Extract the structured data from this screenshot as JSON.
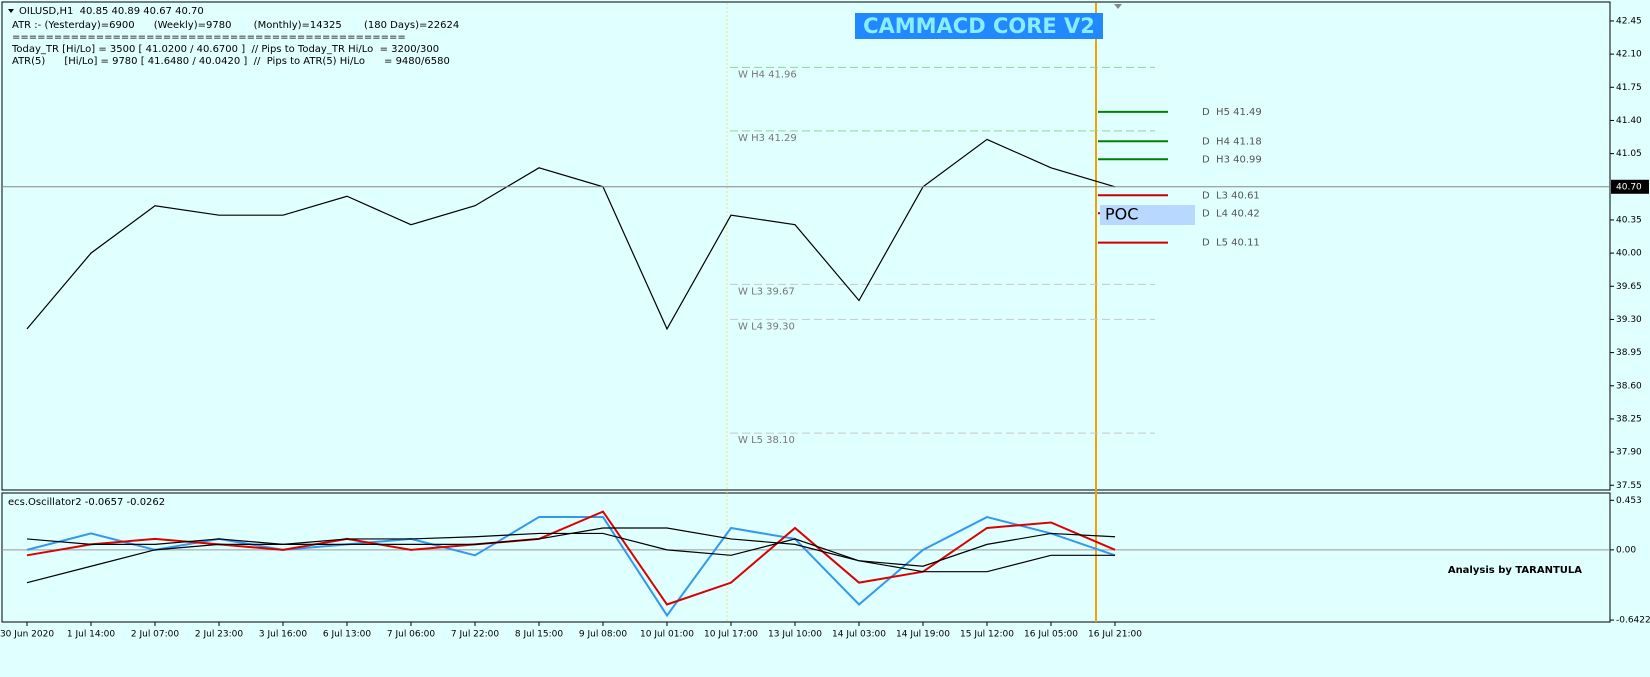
{
  "header": {
    "symbol_line": "OILUSD,H1  40.85 40.89 40.67 40.70",
    "atr_line": "ATR :- (Yesterday)=6900      (Weekly)=9780       (Monthly)=14325       (180 Days)=22624",
    "separator": "===============================================",
    "today_tr": "Today_TR [Hi/Lo] = 3500 [ 41.0200 / 40.6700 ]  // Pips to Today_TR Hi/Lo  = 3200/300",
    "atr5": "ATR(5)      [Hi/Lo] = 9780 [ 41.6480 / 40.0420 ]  //  Pips to ATR(5) Hi/Lo      = 9480/6580",
    "indicator_title": "CAMMACD CORE V2"
  },
  "chart_data": [
    {
      "type": "line",
      "categories": [
        "30 Jun 2020",
        "1 Jul 14:00",
        "2 Jul 07:00",
        "2 Jul 23:00",
        "3 Jul 16:00",
        "6 Jul 13:00",
        "7 Jul 06:00",
        "7 Jul 22:00",
        "8 Jul 15:00",
        "9 Jul 08:00",
        "10 Jul 01:00",
        "10 Jul 17:00",
        "13 Jul 10:00",
        "14 Jul 03:00",
        "14 Jul 19:00",
        "15 Jul 12:00",
        "16 Jul 05:00",
        "16 Jul 21:00"
      ],
      "series": [
        {
          "color": "#000000",
          "values": [
            39.2,
            40.0,
            40.5,
            40.4,
            40.4,
            40.6,
            40.3,
            40.5,
            40.9,
            40.7,
            39.2,
            40.4,
            40.3,
            39.5,
            40.7,
            41.2,
            40.9,
            40.7
          ]
        }
      ],
      "ylim": [
        37.5,
        42.65
      ],
      "yticks": [
        42.45,
        {
          "value": 42.1,
          "label": "42.10"
        },
        41.75,
        {
          "value": 41.4,
          "label": "41.40"
        },
        41.05,
        40.35,
        {
          "value": 40.0,
          "label": "40.00"
        },
        39.65,
        {
          "value": 39.3,
          "label": "39.30"
        },
        38.95,
        {
          "value": 38.6,
          "label": "38.60"
        },
        38.25,
        {
          "value": 37.9,
          "label": "37.90"
        },
        37.55
      ],
      "weekly_levels": [
        {
          "value": 41.96,
          "label": "W H4 41.96",
          "color": "#90d890"
        },
        {
          "value": 41.29,
          "label": "W H3 41.29",
          "color": "#90d890"
        },
        {
          "value": 39.67,
          "label": "W L3 39.67",
          "color": "#c8c8c8"
        },
        {
          "value": 39.3,
          "label": "W L4 39.30",
          "color": "#c8c8c8"
        },
        {
          "value": 38.1,
          "label": "W L5 38.10",
          "color": "#c8c8c8"
        }
      ],
      "daily_levels": [
        {
          "value": 41.49,
          "label": "D  H5 41.49",
          "color": "#008000"
        },
        {
          "value": 41.18,
          "label": "D  H4 41.18",
          "color": "#008000"
        },
        {
          "value": 40.99,
          "label": "D  H3 40.99",
          "color": "#008000"
        },
        {
          "value": 40.61,
          "label": "D  L3 40.61",
          "color": "#cc0000"
        },
        {
          "value": 40.42,
          "label": "D  L4 40.42",
          "color": "#cc0000"
        },
        {
          "value": 40.11,
          "label": "D  L5 40.11",
          "color": "#cc0000"
        }
      ],
      "current_price": {
        "value": 40.7,
        "label": "40.70"
      },
      "poc": "POC"
    },
    {
      "type": "line",
      "title": "ecs.Oscillator2 -0.0657 -0.0262",
      "annotation": "Analysis by TARANTULA",
      "series": [
        {
          "color": "#3399ee",
          "values": [
            0.0,
            0.15,
            0.0,
            0.1,
            0.0,
            0.05,
            0.1,
            -0.05,
            0.3,
            0.3,
            -0.6,
            0.2,
            0.1,
            -0.5,
            0.0,
            0.3,
            0.15,
            -0.05
          ]
        },
        {
          "color": "#dd0000",
          "values": [
            -0.05,
            0.05,
            0.1,
            0.05,
            0.0,
            0.1,
            0.0,
            0.05,
            0.1,
            0.35,
            -0.5,
            -0.3,
            0.2,
            -0.3,
            -0.2,
            0.2,
            0.25,
            0.0
          ]
        },
        {
          "color": "#000000",
          "values": [
            0.1,
            0.05,
            0.05,
            0.1,
            0.05,
            0.1,
            0.1,
            0.12,
            0.15,
            0.15,
            0.0,
            -0.05,
            0.1,
            -0.1,
            -0.15,
            0.05,
            0.15,
            0.12
          ]
        },
        {
          "color": "#000000",
          "values": [
            -0.3,
            -0.15,
            0.0,
            0.05,
            0.05,
            0.05,
            0.05,
            0.05,
            0.1,
            0.2,
            0.2,
            0.1,
            0.05,
            -0.1,
            -0.2,
            -0.2,
            -0.05,
            -0.05
          ]
        }
      ],
      "ylim": [
        -0.66,
        0.52
      ],
      "yticks": [
        0.453,
        {
          "value": 0,
          "label": "0.00"
        },
        -0.6422
      ]
    }
  ]
}
